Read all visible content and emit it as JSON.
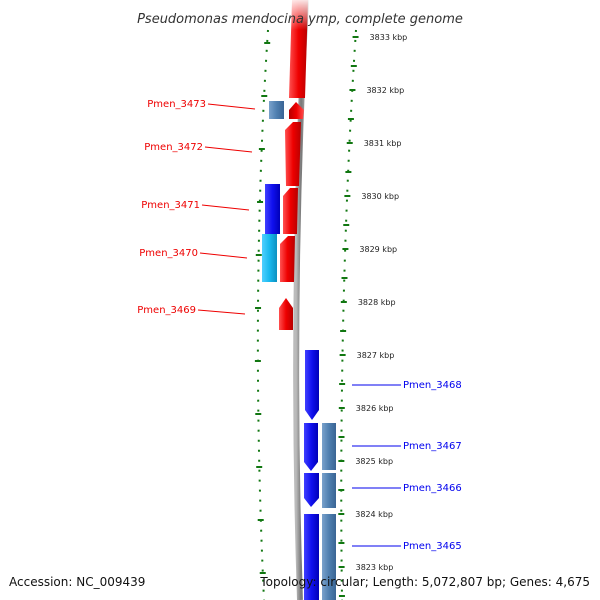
{
  "title": "Pseudomonas mendocina ymp, complete genome",
  "footer": {
    "accession": "Accession: NC_009439",
    "topology": "Topology: circular; Length: 5,072,807 bp; Genes: 4,675"
  },
  "ticks": [
    "3833 kbp",
    "3832 kbp",
    "3831 kbp",
    "3830 kbp",
    "3829 kbp",
    "3828 kbp",
    "3827 kbp",
    "3826 kbp",
    "3825 kbp",
    "3824 kbp",
    "3823 kbp"
  ],
  "genes_reverse": [
    "Pmen_3473",
    "Pmen_3472",
    "Pmen_3471",
    "Pmen_3470",
    "Pmen_3469"
  ],
  "genes_forward": [
    "Pmen_3468",
    "Pmen_3467",
    "Pmen_3466",
    "Pmen_3465"
  ],
  "colors": {
    "reverse_strand": "#ee0000",
    "forward_strand": "#0000ee",
    "cds_blue": "#1a1aee",
    "cds_steel": "#4f7fb0",
    "cds_cyan": "#18b8ee",
    "backbone": "#888888",
    "track_dots": "#117711"
  }
}
